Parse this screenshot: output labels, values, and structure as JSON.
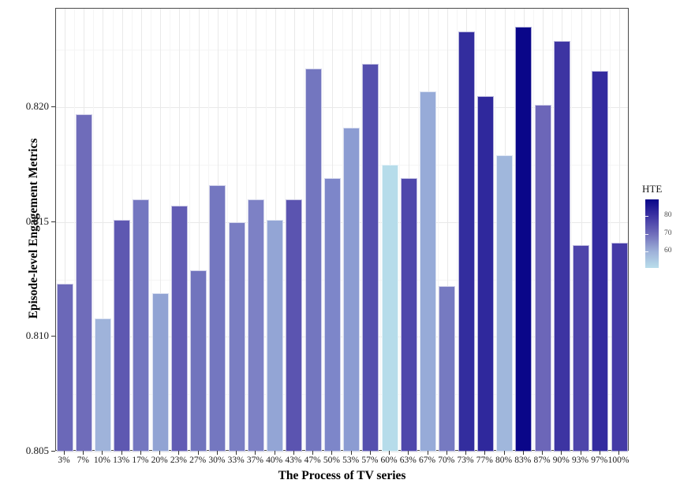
{
  "y_axis": {
    "title": "Episode-level Engagement Metrics",
    "tick_labels": [
      "0.805",
      "0.810",
      "0.815",
      "0.820"
    ]
  },
  "x_axis": {
    "title": "The Process of TV series"
  },
  "legend": {
    "title": "HTE",
    "tick_labels": [
      "80",
      "70",
      "60"
    ]
  },
  "chart_data": {
    "type": "bar",
    "title": "",
    "xlabel": "The Process of TV series",
    "ylabel": "Episode-level Engagement Metrics",
    "ylim": [
      0.805,
      0.8243
    ],
    "yticks": [
      0.805,
      0.81,
      0.815,
      0.82
    ],
    "ytick_labels": [
      "0.805",
      "0.810",
      "0.815",
      "0.820"
    ],
    "grid": "on",
    "categories": [
      "3%",
      "7%",
      "10%",
      "13%",
      "17%",
      "20%",
      "23%",
      "27%",
      "30%",
      "33%",
      "37%",
      "40%",
      "43%",
      "47%",
      "50%",
      "53%",
      "57%",
      "60%",
      "63%",
      "67%",
      "70%",
      "73%",
      "77%",
      "80%",
      "83%",
      "87%",
      "90%",
      "93%",
      "97%",
      "100%"
    ],
    "values": [
      0.8123,
      0.8197,
      0.8108,
      0.8151,
      0.816,
      0.8119,
      0.8157,
      0.8129,
      0.8166,
      0.815,
      0.816,
      0.8151,
      0.816,
      0.8217,
      0.8169,
      0.8191,
      0.8219,
      0.8175,
      0.8169,
      0.8207,
      0.8122,
      0.8233,
      0.8205,
      0.8179,
      0.8235,
      0.8201,
      0.8229,
      0.814,
      0.8216,
      0.8141
    ],
    "color_variable": "HTE",
    "hte_values": [
      71,
      70,
      60,
      74,
      68,
      62,
      72,
      69,
      68,
      67,
      67,
      62,
      74,
      69,
      66,
      64,
      75,
      52,
      77,
      61,
      68,
      81,
      82,
      59,
      89,
      70,
      79,
      77,
      81,
      78
    ],
    "bar_colors": [
      "#6B68B8",
      "#6F6CBA",
      "#9FB3DA",
      "#5E58B1",
      "#7477C0",
      "#91A3D3",
      "#625CB4",
      "#7174BD",
      "#7477C0",
      "#7A7EC3",
      "#7D81C5",
      "#93A5D5",
      "#5B54B0",
      "#7376BF",
      "#7D86C9",
      "#8C9CD2",
      "#5550AE",
      "#B6DCEA",
      "#4E47AB",
      "#97ABD8",
      "#767AC1",
      "#332D9E",
      "#2F289C",
      "#A0B7DC",
      "#0A0689",
      "#6C66B8",
      "#3D34A2",
      "#4E45AA",
      "#332B9F",
      "#443AA6"
    ],
    "legend": {
      "title": "HTE",
      "position": "right",
      "ticks": [
        80,
        70,
        60
      ],
      "domain": [
        51,
        89
      ],
      "gradient_stops": [
        {
          "pos": 0.0,
          "color": "#0A0689"
        },
        {
          "pos": 0.237,
          "color": "#3C33A3"
        },
        {
          "pos": 0.5,
          "color": "#6F6CBA"
        },
        {
          "pos": 0.763,
          "color": "#9EB2D9"
        },
        {
          "pos": 1.0,
          "color": "#B9DDEB"
        }
      ]
    }
  }
}
